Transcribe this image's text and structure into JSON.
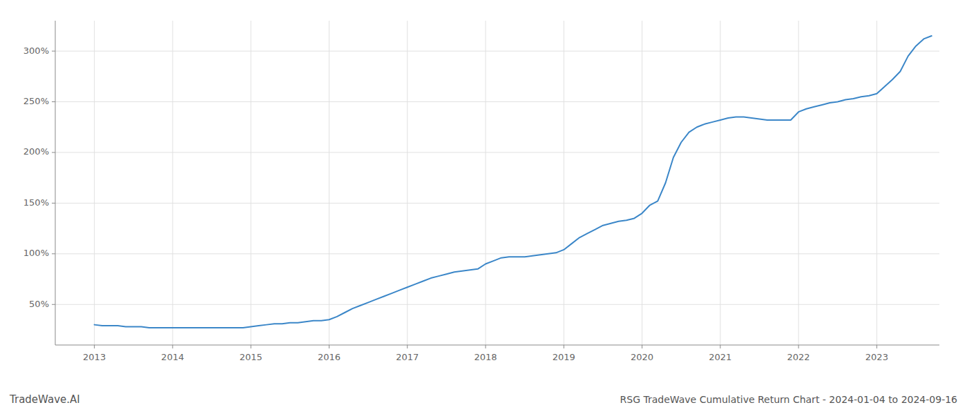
{
  "chart_data": {
    "type": "line",
    "title": "RSG TradeWave Cumulative Return Chart - 2024-01-04 to 2024-09-16",
    "annotations": [
      "TradeWave.AI"
    ],
    "color": "#3a86c8",
    "grid": true,
    "xlim": [
      2012.5,
      2023.8
    ],
    "xticks": [
      2013,
      2014,
      2015,
      2016,
      2017,
      2018,
      2019,
      2020,
      2021,
      2022,
      2023
    ],
    "ylim": [
      10,
      330
    ],
    "yticks": [
      {
        "value": 50,
        "label": "50%"
      },
      {
        "value": 100,
        "label": "100%"
      },
      {
        "value": 150,
        "label": "150%"
      },
      {
        "value": 200,
        "label": "200%"
      },
      {
        "value": 250,
        "label": "250%"
      },
      {
        "value": 300,
        "label": "300%"
      }
    ],
    "x": [
      2013.0,
      2013.1,
      2013.2,
      2013.3,
      2013.4,
      2013.5,
      2013.6,
      2013.7,
      2013.8,
      2013.9,
      2014.0,
      2014.1,
      2014.2,
      2014.3,
      2014.4,
      2014.5,
      2014.6,
      2014.7,
      2014.8,
      2014.9,
      2015.0,
      2015.1,
      2015.2,
      2015.3,
      2015.4,
      2015.5,
      2015.6,
      2015.7,
      2015.8,
      2015.9,
      2016.0,
      2016.1,
      2016.2,
      2016.3,
      2016.4,
      2016.5,
      2016.6,
      2016.7,
      2016.8,
      2016.9,
      2017.0,
      2017.1,
      2017.2,
      2017.3,
      2017.4,
      2017.5,
      2017.6,
      2017.7,
      2017.8,
      2017.9,
      2018.0,
      2018.1,
      2018.2,
      2018.3,
      2018.4,
      2018.5,
      2018.6,
      2018.7,
      2018.8,
      2018.9,
      2019.0,
      2019.1,
      2019.2,
      2019.3,
      2019.4,
      2019.5,
      2019.6,
      2019.7,
      2019.8,
      2019.9,
      2020.0,
      2020.1,
      2020.2,
      2020.3,
      2020.4,
      2020.5,
      2020.6,
      2020.7,
      2020.8,
      2020.9,
      2021.0,
      2021.1,
      2021.2,
      2021.3,
      2021.4,
      2021.5,
      2021.6,
      2021.7,
      2021.8,
      2021.9,
      2022.0,
      2022.1,
      2022.2,
      2022.3,
      2022.4,
      2022.5,
      2022.6,
      2022.7,
      2022.8,
      2022.9,
      2023.0,
      2023.1,
      2023.2,
      2023.3,
      2023.4,
      2023.5,
      2023.6,
      2023.7
    ],
    "values": [
      30,
      29,
      29,
      29,
      28,
      28,
      28,
      27,
      27,
      27,
      27,
      27,
      27,
      27,
      27,
      27,
      27,
      27,
      27,
      27,
      28,
      29,
      30,
      31,
      31,
      32,
      32,
      33,
      34,
      34,
      35,
      38,
      42,
      46,
      49,
      52,
      55,
      58,
      61,
      64,
      67,
      70,
      73,
      76,
      78,
      80,
      82,
      83,
      84,
      85,
      90,
      93,
      96,
      97,
      97,
      97,
      98,
      99,
      100,
      101,
      104,
      110,
      116,
      120,
      124,
      128,
      130,
      132,
      133,
      135,
      140,
      148,
      152,
      170,
      195,
      210,
      220,
      225,
      228,
      230,
      232,
      234,
      235,
      235,
      234,
      233,
      232,
      232,
      232,
      232,
      240,
      243,
      245,
      247,
      249,
      250,
      252,
      253,
      255,
      256,
      258,
      265,
      272,
      280,
      295,
      305,
      312,
      315
    ]
  }
}
